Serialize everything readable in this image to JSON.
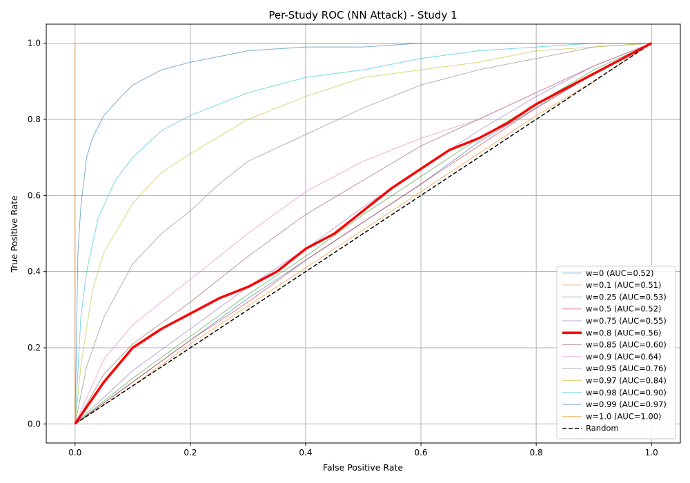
{
  "chart_data": {
    "type": "line",
    "title": "Per-Study ROC (NN Attack) - Study 1",
    "xlabel": "False Positive Rate",
    "ylabel": "True Positive Rate",
    "xlim": [
      -0.05,
      1.05
    ],
    "ylim": [
      -0.05,
      1.05
    ],
    "xticks": [
      "0.0",
      "0.2",
      "0.4",
      "0.6",
      "0.8",
      "1.0"
    ],
    "yticks": [
      "0.0",
      "0.2",
      "0.4",
      "0.6",
      "0.8",
      "1.0"
    ],
    "grid": true,
    "legend_position": "lower-right",
    "series": [
      {
        "name": "w=0 (AUC=0.52)",
        "color": "#1f77b4",
        "highlight": false,
        "x": [
          0,
          0.1,
          0.2,
          0.3,
          0.4,
          0.5,
          0.6,
          0.7,
          0.8,
          0.9,
          1.0
        ],
        "y": [
          0,
          0.11,
          0.22,
          0.33,
          0.43,
          0.53,
          0.63,
          0.74,
          0.83,
          0.92,
          1.0
        ]
      },
      {
        "name": "w=0.1 (AUC=0.51)",
        "color": "#ff7f0e",
        "highlight": false,
        "x": [
          0,
          0.1,
          0.2,
          0.3,
          0.4,
          0.5,
          0.6,
          0.7,
          0.8,
          0.9,
          1.0
        ],
        "y": [
          0,
          0.1,
          0.21,
          0.31,
          0.41,
          0.51,
          0.61,
          0.71,
          0.81,
          0.9,
          1.0
        ]
      },
      {
        "name": "w=0.25 (AUC=0.53)",
        "color": "#2ca02c",
        "highlight": false,
        "x": [
          0,
          0.1,
          0.2,
          0.3,
          0.4,
          0.5,
          0.6,
          0.7,
          0.8,
          0.9,
          1.0
        ],
        "y": [
          0,
          0.12,
          0.23,
          0.34,
          0.44,
          0.55,
          0.65,
          0.75,
          0.84,
          0.93,
          1.0
        ]
      },
      {
        "name": "w=0.5 (AUC=0.52)",
        "color": "#d62728",
        "highlight": false,
        "x": [
          0,
          0.1,
          0.2,
          0.3,
          0.4,
          0.5,
          0.6,
          0.7,
          0.8,
          0.9,
          1.0
        ],
        "y": [
          0,
          0.11,
          0.22,
          0.32,
          0.43,
          0.53,
          0.63,
          0.73,
          0.83,
          0.92,
          1.0
        ]
      },
      {
        "name": "w=0.75 (AUC=0.55)",
        "color": "#9467bd",
        "highlight": false,
        "x": [
          0,
          0.1,
          0.2,
          0.3,
          0.4,
          0.5,
          0.6,
          0.7,
          0.8,
          0.9,
          1.0
        ],
        "y": [
          0,
          0.14,
          0.25,
          0.36,
          0.46,
          0.57,
          0.67,
          0.77,
          0.86,
          0.94,
          1.0
        ]
      },
      {
        "name": "w=0.8 (AUC=0.56)",
        "color": "#ff0000",
        "highlight": true,
        "x": [
          0,
          0.05,
          0.1,
          0.15,
          0.2,
          0.25,
          0.3,
          0.35,
          0.4,
          0.45,
          0.5,
          0.55,
          0.6,
          0.65,
          0.7,
          0.75,
          0.8,
          0.85,
          0.9,
          0.95,
          1.0
        ],
        "y": [
          0,
          0.11,
          0.2,
          0.25,
          0.29,
          0.33,
          0.36,
          0.4,
          0.46,
          0.5,
          0.56,
          0.62,
          0.67,
          0.72,
          0.75,
          0.79,
          0.84,
          0.88,
          0.92,
          0.96,
          1.0
        ]
      },
      {
        "name": "w=0.85 (AUC=0.60)",
        "color": "#8c564b",
        "highlight": false,
        "x": [
          0,
          0.05,
          0.1,
          0.2,
          0.3,
          0.4,
          0.5,
          0.6,
          0.7,
          0.8,
          0.9,
          1.0
        ],
        "y": [
          0,
          0.13,
          0.21,
          0.32,
          0.44,
          0.55,
          0.64,
          0.73,
          0.8,
          0.87,
          0.94,
          1.0
        ]
      },
      {
        "name": "w=0.9 (AUC=0.64)",
        "color": "#e377c2",
        "highlight": false,
        "x": [
          0,
          0.05,
          0.1,
          0.2,
          0.3,
          0.4,
          0.5,
          0.6,
          0.7,
          0.8,
          0.9,
          1.0
        ],
        "y": [
          0,
          0.17,
          0.26,
          0.38,
          0.5,
          0.61,
          0.69,
          0.75,
          0.8,
          0.87,
          0.94,
          1.0
        ]
      },
      {
        "name": "w=0.95 (AUC=0.76)",
        "color": "#7f7f7f",
        "highlight": false,
        "x": [
          0,
          0.02,
          0.05,
          0.1,
          0.15,
          0.2,
          0.25,
          0.3,
          0.4,
          0.5,
          0.6,
          0.7,
          0.8,
          0.9,
          1.0
        ],
        "y": [
          0,
          0.15,
          0.28,
          0.42,
          0.5,
          0.56,
          0.63,
          0.69,
          0.76,
          0.83,
          0.89,
          0.93,
          0.96,
          0.99,
          1.0
        ]
      },
      {
        "name": "w=0.97 (AUC=0.84)",
        "color": "#bcbd22",
        "highlight": false,
        "x": [
          0,
          0.01,
          0.03,
          0.05,
          0.1,
          0.15,
          0.2,
          0.3,
          0.4,
          0.5,
          0.6,
          0.7,
          0.8,
          0.9,
          1.0
        ],
        "y": [
          0,
          0.15,
          0.35,
          0.45,
          0.58,
          0.66,
          0.71,
          0.8,
          0.86,
          0.91,
          0.93,
          0.95,
          0.98,
          0.99,
          1.0
        ]
      },
      {
        "name": "w=0.98 (AUC=0.90)",
        "color": "#17becf",
        "highlight": false,
        "x": [
          0,
          0.01,
          0.02,
          0.04,
          0.07,
          0.1,
          0.15,
          0.2,
          0.3,
          0.4,
          0.5,
          0.6,
          0.7,
          0.8,
          0.9,
          1.0
        ],
        "y": [
          0,
          0.28,
          0.4,
          0.54,
          0.64,
          0.7,
          0.77,
          0.81,
          0.87,
          0.91,
          0.93,
          0.96,
          0.98,
          0.99,
          1.0,
          1.0
        ]
      },
      {
        "name": "w=0.99 (AUC=0.97)",
        "color": "#1f77b4",
        "highlight": false,
        "x": [
          0,
          0.005,
          0.01,
          0.02,
          0.03,
          0.05,
          0.08,
          0.1,
          0.15,
          0.2,
          0.3,
          0.4,
          0.5,
          0.6,
          0.7,
          0.8,
          1.0
        ],
        "y": [
          0,
          0.45,
          0.57,
          0.7,
          0.75,
          0.81,
          0.86,
          0.89,
          0.93,
          0.95,
          0.98,
          0.99,
          0.99,
          1.0,
          1.0,
          1.0,
          1.0
        ]
      },
      {
        "name": "w=1.0 (AUC=1.00)",
        "color": "#ff7f0e",
        "highlight": false,
        "x": [
          0,
          0,
          1.0
        ],
        "y": [
          0,
          1.0,
          1.0
        ]
      }
    ],
    "reference": {
      "name": "Random",
      "color": "#000000",
      "dashed": true,
      "x": [
        0,
        1
      ],
      "y": [
        0,
        1
      ]
    }
  }
}
